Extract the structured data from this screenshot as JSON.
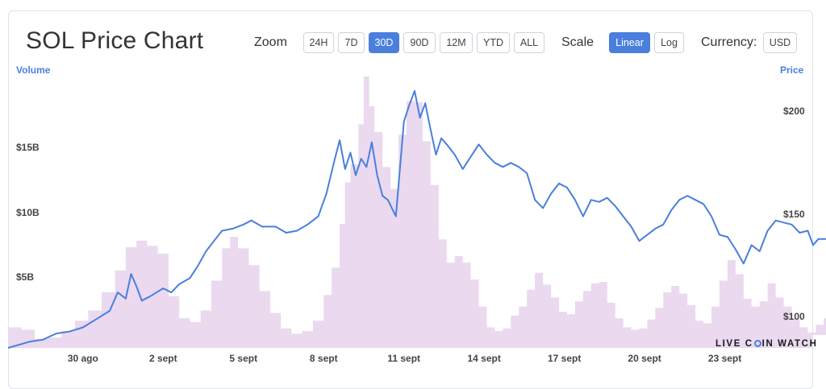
{
  "title": "SOL Price Chart",
  "controls": {
    "zoom_label": "Zoom",
    "zoom_options": [
      "24H",
      "7D",
      "30D",
      "90D",
      "12M",
      "YTD",
      "ALL"
    ],
    "zoom_selected": "30D",
    "scale_label": "Scale",
    "scale_options": [
      "Linear",
      "Log"
    ],
    "scale_selected": "Linear",
    "currency_label": "Currency:",
    "currency_value": "USD"
  },
  "watermark": {
    "part1": "LIVE C",
    "part2": "IN WATCH"
  },
  "colors": {
    "accent": "#4a7fdd",
    "price_line": "#4a7fdd",
    "volume_fill": "#ead9ef"
  },
  "chart_data": {
    "type": "line",
    "title": "SOL Price Chart",
    "left_axis_title": "Volume",
    "right_axis_title": "Price",
    "x_tick_labels": [
      "30 ago",
      "2 sept",
      "5 sept",
      "8 sept",
      "11 sept",
      "14 sept",
      "17 sept",
      "20 sept",
      "23 sept"
    ],
    "x_tick_days": [
      2,
      5,
      8,
      11,
      14,
      17,
      20,
      23,
      26
    ],
    "x_range_days": [
      -0.8,
      29.3
    ],
    "price_axis": {
      "range": [
        88,
        220
      ],
      "ticks": [
        100,
        150,
        200
      ],
      "tick_labels": [
        "$100",
        "$150",
        "$200"
      ]
    },
    "volume_axis": {
      "range": [
        0,
        21000000000
      ],
      "ticks": [
        5000000000,
        10000000000,
        15000000000
      ],
      "tick_labels": [
        "$5B",
        "$10B",
        "$15B"
      ]
    },
    "series": [
      {
        "name": "Price",
        "kind": "line",
        "points": [
          [
            -0.8,
            88
          ],
          [
            0,
            91
          ],
          [
            0.5,
            92
          ],
          [
            1,
            95
          ],
          [
            1.5,
            96
          ],
          [
            2,
            98
          ],
          [
            2.5,
            102
          ],
          [
            3,
            106
          ],
          [
            3.3,
            115
          ],
          [
            3.6,
            112
          ],
          [
            3.8,
            124
          ],
          [
            4,
            118
          ],
          [
            4.2,
            111
          ],
          [
            4.5,
            113
          ],
          [
            5,
            117
          ],
          [
            5.3,
            115
          ],
          [
            5.6,
            119
          ],
          [
            6,
            122
          ],
          [
            6.3,
            128
          ],
          [
            6.6,
            135
          ],
          [
            6.9,
            140
          ],
          [
            7.2,
            145
          ],
          [
            7.6,
            146
          ],
          [
            8,
            148
          ],
          [
            8.3,
            150
          ],
          [
            8.7,
            147
          ],
          [
            9.2,
            147
          ],
          [
            9.6,
            144
          ],
          [
            10,
            145
          ],
          [
            10.4,
            148
          ],
          [
            10.8,
            152
          ],
          [
            11.1,
            163
          ],
          [
            11.4,
            179
          ],
          [
            11.6,
            189
          ],
          [
            11.8,
            175
          ],
          [
            12,
            183
          ],
          [
            12.2,
            172
          ],
          [
            12.4,
            180
          ],
          [
            12.6,
            176
          ],
          [
            12.8,
            188
          ],
          [
            13,
            172
          ],
          [
            13.2,
            162
          ],
          [
            13.4,
            160
          ],
          [
            13.7,
            152
          ],
          [
            14,
            198
          ],
          [
            14.2,
            206
          ],
          [
            14.4,
            213
          ],
          [
            14.6,
            200
          ],
          [
            14.8,
            207
          ],
          [
            15,
            194
          ],
          [
            15.2,
            182
          ],
          [
            15.4,
            190
          ],
          [
            15.6,
            187
          ],
          [
            15.9,
            182
          ],
          [
            16.2,
            175
          ],
          [
            16.5,
            181
          ],
          [
            16.8,
            187
          ],
          [
            17.1,
            182
          ],
          [
            17.4,
            178
          ],
          [
            17.7,
            176
          ],
          [
            18,
            178
          ],
          [
            18.3,
            176
          ],
          [
            18.6,
            173
          ],
          [
            18.9,
            160
          ],
          [
            19.2,
            156
          ],
          [
            19.5,
            163
          ],
          [
            19.8,
            168
          ],
          [
            20.1,
            166
          ],
          [
            20.4,
            160
          ],
          [
            20.7,
            152
          ],
          [
            21,
            160
          ],
          [
            21.3,
            159
          ],
          [
            21.6,
            161
          ],
          [
            21.9,
            157
          ],
          [
            22.2,
            152
          ],
          [
            22.5,
            147
          ],
          [
            22.8,
            140
          ],
          [
            23.1,
            143
          ],
          [
            23.4,
            146
          ],
          [
            23.7,
            148
          ],
          [
            24,
            155
          ],
          [
            24.3,
            160
          ],
          [
            24.6,
            162
          ],
          [
            24.9,
            160
          ],
          [
            25.2,
            158
          ],
          [
            25.5,
            152
          ],
          [
            25.8,
            143
          ],
          [
            26.1,
            142
          ],
          [
            26.4,
            136
          ],
          [
            26.7,
            129
          ],
          [
            27,
            138
          ],
          [
            27.3,
            135
          ],
          [
            27.6,
            145
          ],
          [
            27.9,
            150
          ],
          [
            28.2,
            149
          ],
          [
            28.5,
            148
          ],
          [
            28.8,
            144
          ],
          [
            29.1,
            145
          ],
          [
            29.3,
            138
          ],
          [
            29.5,
            141
          ],
          [
            29.8,
            141
          ]
        ]
      },
      {
        "name": "Volume",
        "kind": "area",
        "points": [
          [
            -0.8,
            1600000000
          ],
          [
            -0.3,
            1400000000
          ],
          [
            0.2,
            700000000
          ],
          [
            0.7,
            800000000
          ],
          [
            1.2,
            1300000000
          ],
          [
            1.7,
            2100000000
          ],
          [
            2.2,
            2900000000
          ],
          [
            2.7,
            4300000000
          ],
          [
            3.2,
            6000000000
          ],
          [
            3.6,
            7800000000
          ],
          [
            4,
            8300000000
          ],
          [
            4.4,
            7900000000
          ],
          [
            4.8,
            7300000000
          ],
          [
            5.2,
            4000000000
          ],
          [
            5.6,
            2300000000
          ],
          [
            6,
            2000000000
          ],
          [
            6.4,
            2900000000
          ],
          [
            6.8,
            5200000000
          ],
          [
            7.2,
            7700000000
          ],
          [
            7.5,
            8600000000
          ],
          [
            7.8,
            7700000000
          ],
          [
            8.2,
            6400000000
          ],
          [
            8.6,
            4400000000
          ],
          [
            9,
            2700000000
          ],
          [
            9.4,
            1500000000
          ],
          [
            9.8,
            1100000000
          ],
          [
            10.2,
            1300000000
          ],
          [
            10.6,
            2100000000
          ],
          [
            11,
            4100000000
          ],
          [
            11.3,
            6200000000
          ],
          [
            11.6,
            9600000000
          ],
          [
            11.8,
            12800000000
          ],
          [
            12,
            14200000000
          ],
          [
            12.3,
            17300000000
          ],
          [
            12.5,
            21000000000
          ],
          [
            12.7,
            18700000000
          ],
          [
            12.9,
            16700000000
          ],
          [
            13.2,
            14000000000
          ],
          [
            13.5,
            12300000000
          ],
          [
            13.8,
            16500000000
          ],
          [
            14.1,
            19100000000
          ],
          [
            14.4,
            19000000000
          ],
          [
            14.7,
            16000000000
          ],
          [
            15,
            12600000000
          ],
          [
            15.3,
            8400000000
          ],
          [
            15.6,
            6600000000
          ],
          [
            15.9,
            7100000000
          ],
          [
            16.2,
            6600000000
          ],
          [
            16.5,
            5300000000
          ],
          [
            16.8,
            3200000000
          ],
          [
            17.1,
            1600000000
          ],
          [
            17.4,
            1300000000
          ],
          [
            17.7,
            1500000000
          ],
          [
            18,
            2500000000
          ],
          [
            18.3,
            3200000000
          ],
          [
            18.6,
            4500000000
          ],
          [
            18.9,
            5800000000
          ],
          [
            19.2,
            4900000000
          ],
          [
            19.5,
            3900000000
          ],
          [
            19.8,
            2800000000
          ],
          [
            20.1,
            2600000000
          ],
          [
            20.4,
            3600000000
          ],
          [
            20.7,
            4400000000
          ],
          [
            21,
            5000000000
          ],
          [
            21.3,
            5100000000
          ],
          [
            21.6,
            3500000000
          ],
          [
            21.9,
            2300000000
          ],
          [
            22.2,
            1600000000
          ],
          [
            22.5,
            1400000000
          ],
          [
            22.8,
            1500000000
          ],
          [
            23.1,
            2200000000
          ],
          [
            23.4,
            3100000000
          ],
          [
            23.7,
            4300000000
          ],
          [
            24,
            4800000000
          ],
          [
            24.3,
            4200000000
          ],
          [
            24.6,
            3300000000
          ],
          [
            24.9,
            2100000000
          ],
          [
            25.2,
            1900000000
          ],
          [
            25.5,
            3200000000
          ],
          [
            25.8,
            5200000000
          ],
          [
            26.1,
            6800000000
          ],
          [
            26.4,
            5700000000
          ],
          [
            26.7,
            3800000000
          ],
          [
            27,
            3200000000
          ],
          [
            27.3,
            3600000000
          ],
          [
            27.6,
            5000000000
          ],
          [
            27.9,
            3900000000
          ],
          [
            28.2,
            3200000000
          ],
          [
            28.5,
            2300000000
          ],
          [
            28.8,
            1600000000
          ],
          [
            29.1,
            1200000000
          ],
          [
            29.4,
            1800000000
          ],
          [
            29.7,
            2300000000
          ],
          [
            30,
            2000000000
          ],
          [
            30.3,
            1500000000
          ],
          [
            30.6,
            1000000000
          ]
        ]
      }
    ],
    "legend": "none",
    "grid": false
  }
}
